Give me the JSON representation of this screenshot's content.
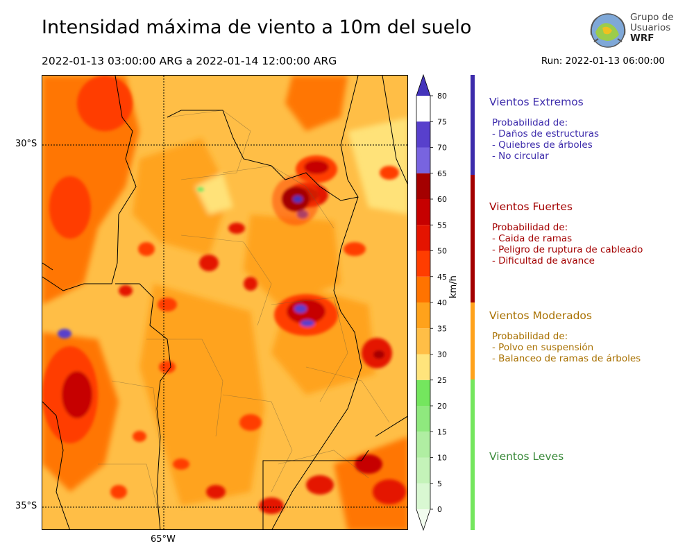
{
  "header": {
    "title": "Intensidad máxima de viento a 10m del suelo",
    "period": "2022-01-13 03:00:00 ARG  a  2022-01-14 12:00:00 ARG",
    "run": "Run: 2022-01-13 06:00:00"
  },
  "logo": {
    "line1": "Grupo de",
    "line2": "Usuarios",
    "line3": "WRF"
  },
  "map": {
    "lat_labels": [
      "30°S",
      "35°S"
    ],
    "lon_labels": [
      "65°W"
    ]
  },
  "colorbar": {
    "unit": "km/h",
    "ticks": [
      "0",
      "5",
      "10",
      "15",
      "20",
      "25",
      "30",
      "35",
      "40",
      "45",
      "50",
      "55",
      "60",
      "65",
      "70",
      "75",
      "80"
    ],
    "colors": [
      "#f2fcef",
      "#d9f8d2",
      "#c4f3b9",
      "#b0eea2",
      "#8fe97e",
      "#74e65e",
      "#ffe47c",
      "#ffbe46",
      "#ffa21b",
      "#ff7300",
      "#ff3d00",
      "#e41400",
      "#c60000",
      "#a40000",
      "#7864e0",
      "#5840cc",
      "#4434bb"
    ]
  },
  "categories": [
    {
      "title": "Vientos Extremos",
      "color": "#3c2bab",
      "desc": [
        "Probabilidad de:",
        "- Daños de estructuras",
        "- Quiebres de árboles",
        "- No circular"
      ]
    },
    {
      "title": "Vientos Fuertes",
      "color": "#a30000",
      "desc": [
        "Probabilidad de:",
        "- Caida de ramas",
        "- Peligro de ruptura de cableado",
        "- Dificultad de avance"
      ]
    },
    {
      "title": "Vientos Moderados",
      "color": "#a87000",
      "bar_color": "#ffa21b",
      "desc": [
        "Probabilidad de:",
        "- Polvo en suspensión",
        "- Balanceo de ramas de árboles"
      ]
    },
    {
      "title": "Vientos Leves",
      "color": "#3a8a3a",
      "bar_color": "#74e65e",
      "desc": []
    }
  ]
}
